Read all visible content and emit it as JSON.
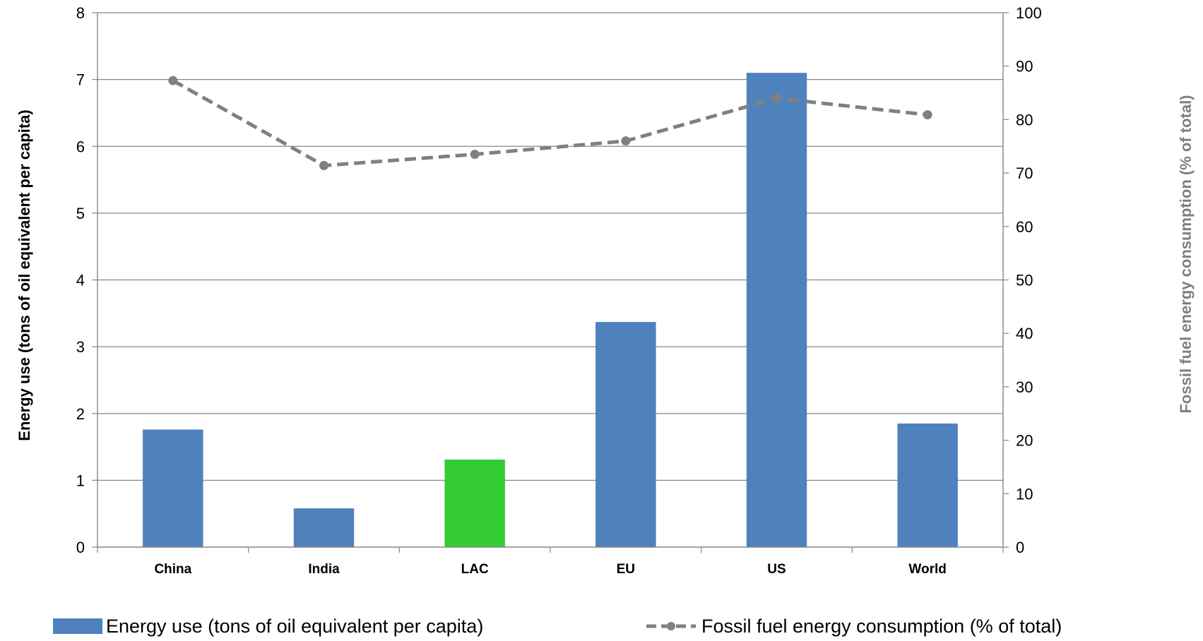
{
  "chart_data": {
    "type": "bar",
    "categories": [
      "China",
      "India",
      "LAC",
      "EU",
      "US",
      "World"
    ],
    "series": [
      {
        "name": "Energy use (tons of oil equivalent per capita)",
        "kind": "bar",
        "axis": "left",
        "values": [
          1.76,
          0.58,
          1.31,
          3.37,
          7.1,
          1.85
        ],
        "color": "#4f81bd",
        "highlight": {
          "category": "LAC",
          "color": "#33cc33"
        }
      },
      {
        "name": "Fossil fuel energy consumption (% of total)",
        "kind": "line",
        "axis": "right",
        "values": [
          87.3,
          71.4,
          73.5,
          76.0,
          84.0,
          80.9
        ],
        "color": "#808080",
        "line_style": "dashed",
        "marker": "circle"
      }
    ],
    "ylabel": "Energy use (tons of oil equivalent per capita)",
    "ylabel_right": "Fossil fuel energy consumption (% of total)",
    "ylim": [
      0,
      8
    ],
    "ylim_right": [
      0,
      100
    ],
    "yticks": [
      "0",
      "1",
      "2",
      "3",
      "4",
      "5",
      "6",
      "7",
      "8"
    ],
    "yticks_right": [
      "0",
      "10",
      "20",
      "30",
      "40",
      "50",
      "60",
      "70",
      "80",
      "90",
      "100"
    ],
    "grid": true,
    "legend_position": "bottom"
  }
}
